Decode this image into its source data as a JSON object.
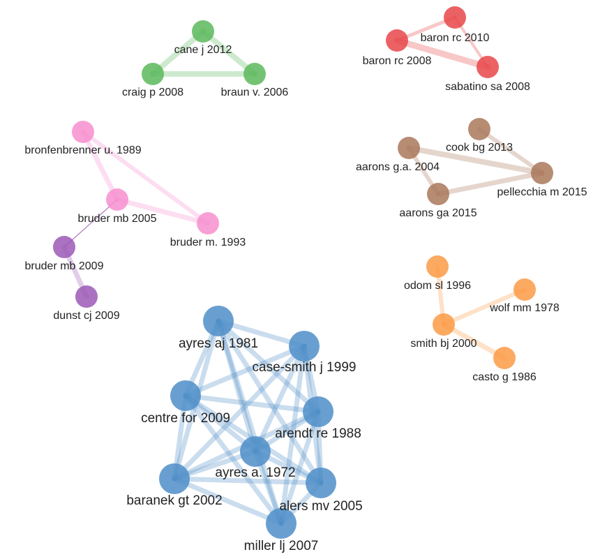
{
  "nodes": [
    {
      "label": "cane j 2012"
    },
    {
      "label": "craig p 2008"
    },
    {
      "label": "braun v. 2006"
    },
    {
      "label": "baron rc 2010"
    },
    {
      "label": "baron rc 2008"
    },
    {
      "label": "sabatino sa 2008"
    },
    {
      "label": "bronfenbrenner u. 1989"
    },
    {
      "label": "bruder mb 2005"
    },
    {
      "label": "bruder m. 1993"
    },
    {
      "label": "bruder mb 2009"
    },
    {
      "label": "dunst cj 2009"
    },
    {
      "label": "cook bg 2013"
    },
    {
      "label": "aarons g.a. 2004"
    },
    {
      "label": "pellecchia m 2015"
    },
    {
      "label": "aarons ga 2015"
    },
    {
      "label": "odom sl 1996"
    },
    {
      "label": "wolf mm 1978"
    },
    {
      "label": "smith bj 2000"
    },
    {
      "label": "casto g 1986"
    },
    {
      "label": "ayres aj 1981"
    },
    {
      "label": "case-smith j 1999"
    },
    {
      "label": "centre for 2009"
    },
    {
      "label": "arendt re 1988"
    },
    {
      "label": "ayres a. 1972"
    },
    {
      "label": "baranek gt 2002"
    },
    {
      "label": "alers mv 2005"
    },
    {
      "label": "miller lj 2007"
    }
  ]
}
